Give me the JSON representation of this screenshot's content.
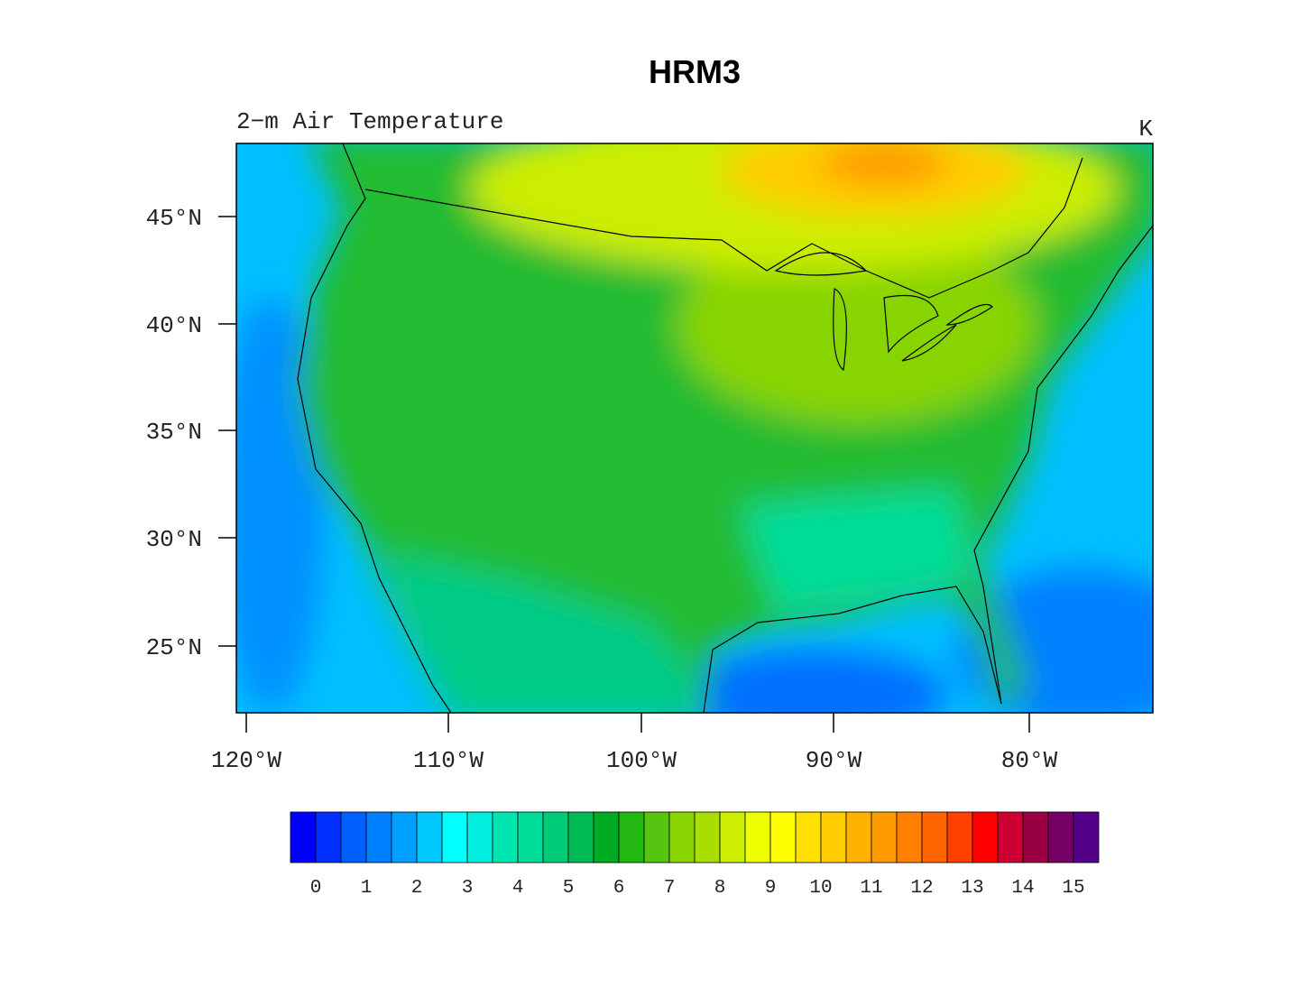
{
  "title": "HRM3",
  "left_string": "2−m Air Temperature",
  "right_string": "K",
  "map": {
    "lat_labels": [
      "45°N",
      "40°N",
      "35°N",
      "30°N",
      "25°N"
    ],
    "lon_labels": [
      "120°W",
      "110°W",
      "100°W",
      "90°W",
      "80°W"
    ]
  },
  "colorbar": {
    "labels": [
      "0",
      "1",
      "2",
      "3",
      "4",
      "5",
      "6",
      "7",
      "8",
      "9",
      "10",
      "11",
      "12",
      "13",
      "14",
      "15"
    ],
    "colors": [
      "#0000ff",
      "#0030ff",
      "#0060ff",
      "#0080ff",
      "#00a0ff",
      "#00c8ff",
      "#00ffff",
      "#00eedd",
      "#00e6b0",
      "#00dd99",
      "#00cc77",
      "#00bb55",
      "#00aa22",
      "#22b811",
      "#55c511",
      "#88d400",
      "#aadd00",
      "#ccee00",
      "#eeff00",
      "#ffff00",
      "#ffe000",
      "#ffcc00",
      "#ffb300",
      "#ff9900",
      "#ff8000",
      "#ff6600",
      "#ff4000",
      "#ff0000",
      "#cc0033",
      "#990044",
      "#770066",
      "#550088"
    ]
  }
}
